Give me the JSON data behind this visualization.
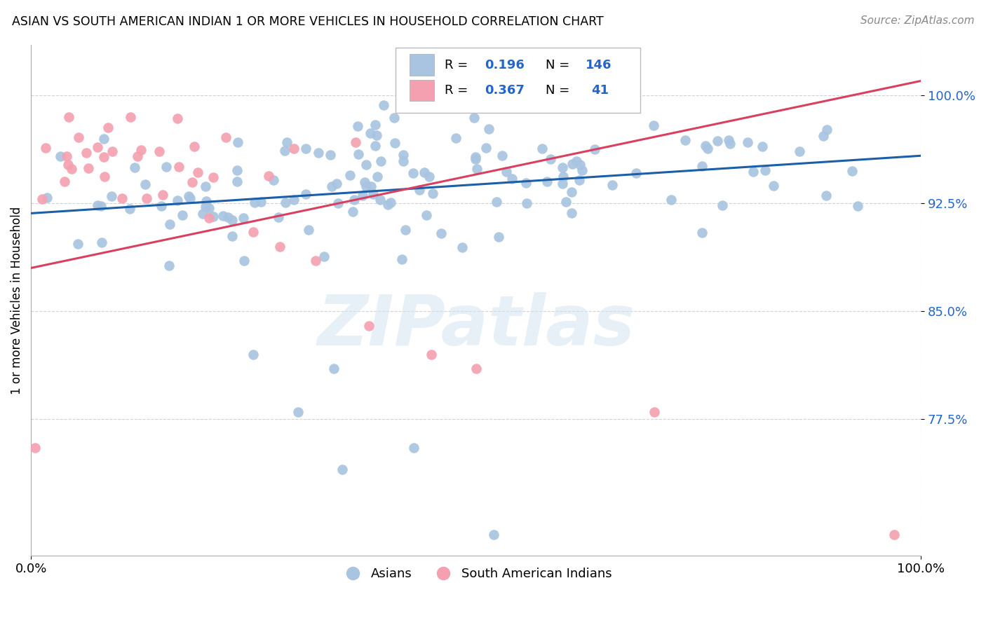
{
  "title": "ASIAN VS SOUTH AMERICAN INDIAN 1 OR MORE VEHICLES IN HOUSEHOLD CORRELATION CHART",
  "source": "Source: ZipAtlas.com",
  "ylabel": "1 or more Vehicles in Household",
  "xlim": [
    0.0,
    1.0
  ],
  "ylim": [
    0.68,
    1.035
  ],
  "legend_r_blue": "0.196",
  "legend_n_blue": "146",
  "legend_r_pink": "0.367",
  "legend_n_pink": "41",
  "blue_color": "#a8c4e0",
  "pink_color": "#f4a0b0",
  "blue_line_color": "#1a5fa8",
  "pink_line_color": "#d94060",
  "watermark": "ZIPatlas",
  "ytick_vals": [
    0.775,
    0.85,
    0.925,
    1.0
  ],
  "ytick_labels": [
    "77.5%",
    "85.0%",
    "92.5%",
    "100.0%"
  ],
  "blue_trend_x": [
    0.0,
    1.0
  ],
  "blue_trend_y": [
    0.918,
    0.958
  ],
  "pink_trend_x": [
    0.0,
    1.0
  ],
  "pink_trend_y": [
    0.88,
    1.01
  ]
}
